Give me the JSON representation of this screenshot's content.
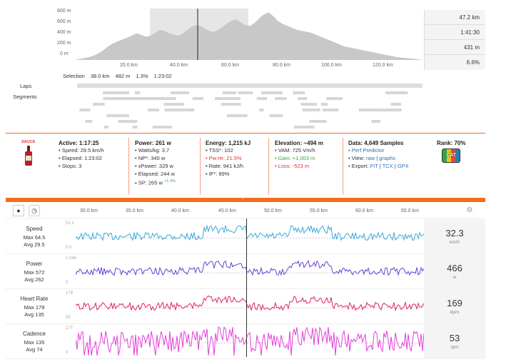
{
  "elevation": {
    "y_ticks": [
      "800 m",
      "600 m",
      "400 m",
      "200 m",
      "0 m"
    ],
    "x_ticks": [
      "20.0 km",
      "40.0 km",
      "60.0 km",
      "80.0 km",
      "100.0 km",
      "120.0 km"
    ],
    "summary": [
      "47.2 km",
      "1:41:30",
      "431 m",
      "6.6%"
    ],
    "profile": [
      0,
      0.02,
      0.04,
      0.06,
      0.09,
      0.14,
      0.2,
      0.28,
      0.34,
      0.38,
      0.42,
      0.46,
      0.5,
      0.55,
      0.52,
      0.48,
      0.5,
      0.56,
      0.62,
      0.6,
      0.55,
      0.52,
      0.5,
      0.56,
      0.64,
      0.7,
      0.72,
      0.68,
      0.62,
      0.58,
      0.6,
      0.66,
      0.74,
      0.8,
      0.84,
      0.78,
      0.72,
      0.7,
      0.76,
      0.86,
      0.94,
      0.98,
      0.9,
      0.8,
      0.74,
      0.7,
      0.66,
      0.62,
      0.6,
      0.58,
      0.56,
      0.52,
      0.48,
      0.44,
      0.4,
      0.36,
      0.32,
      0.28,
      0.26,
      0.24,
      0.22,
      0.2,
      0.18,
      0.16,
      0.14,
      0.12,
      0.1,
      0.08,
      0.06,
      0.05,
      0.04,
      0.03,
      0.02,
      0.01,
      0.0
    ]
  },
  "selection": {
    "label": "Selection",
    "distance": "38.0 km",
    "gain": "482 m",
    "grade": "1.3%",
    "time": "1:23:02"
  },
  "laps_label": "Laps",
  "segments_label": "Segments",
  "sauce": {
    "label": "SAUCE"
  },
  "stats": {
    "active": {
      "title": "Active: 1:17:25",
      "rows": [
        "Speed: 29.5 km/h",
        "Elapsed: 1:23:02",
        "Stops: 3"
      ]
    },
    "power": {
      "title": "Power: 261 w",
      "rows": [
        "Watts/kg: 3.7",
        "NP*: 340 w",
        "xPower: 329 w",
        "Elapsed: 244 w",
        "SP: 265 w"
      ],
      "sp_delta": "+1.3%"
    },
    "energy": {
      "title": "Energy: 1,215 kJ",
      "rows": [
        "TSS*: 102",
        "Pw:Hr: 21.5%",
        "Rate: 941 kJ/h",
        "IF*: 89%"
      ]
    },
    "elevation": {
      "title": "Elevation: ~494 m",
      "vam": "VAM: 725 Vm/h",
      "gain": "Gain: +1,003 m",
      "loss": "Loss: -523 m"
    },
    "data": {
      "title": "Data: 4,649 Samples",
      "perf": "Perf Predictor",
      "view_label": "View:",
      "view_raw": "raw",
      "view_graphs": "graphs",
      "export_label": "Export:",
      "fit": "FIT",
      "tcx": "TCX",
      "gpx": "GPX"
    },
    "rank": {
      "title": "Rank: 70%",
      "badge": "CAT"
    }
  },
  "timeline": {
    "x_ticks": [
      "30.0 km",
      "35.0 km",
      "40.0 km",
      "45.0 km",
      "50.0 km",
      "55.0 km",
      "60.0 km",
      "65.0 km"
    ]
  },
  "metrics": [
    {
      "name": "Speed",
      "max": "Max 64.5",
      "avg": "Avg 29.5",
      "top": "51.1",
      "bottom": "0.0",
      "value": "32.3",
      "unit": "km/h",
      "color": "#3aa8d8"
    },
    {
      "name": "Power",
      "max": "Max 572",
      "avg": "Avg 262",
      "top": "1,046",
      "bottom": "0",
      "value": "466",
      "unit": "w",
      "color": "#6b3fd6"
    },
    {
      "name": "Heart Rate",
      "max": "Max 178",
      "avg": "Avg 135",
      "top": "178",
      "bottom": "55",
      "value": "169",
      "unit": "bpm",
      "color": "#e0245e"
    },
    {
      "name": "Cadence",
      "max": "Max 135",
      "avg": "Avg 74",
      "top": "177",
      "bottom": "0",
      "value": "53",
      "unit": "rpm",
      "color": "#e33fd8"
    }
  ]
}
